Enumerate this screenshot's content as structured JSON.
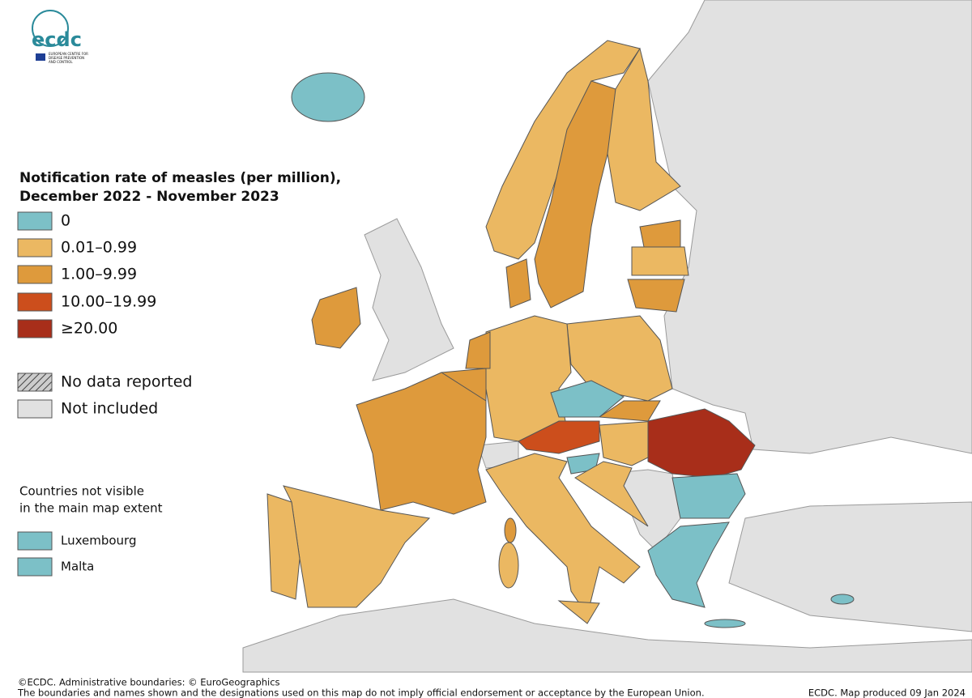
{
  "logo": {
    "text": "ecdc",
    "subtitle": [
      "EUROPEAN CENTRE FOR",
      "DISEASE PREVENTION",
      "AND CONTROL"
    ]
  },
  "legend": {
    "title": [
      "Notification rate of measles (per million),",
      "December 2022 - November 2023"
    ],
    "classes": [
      {
        "label": "0",
        "color": "#7cc0c7"
      },
      {
        "label": "0.01–0.99",
        "color": "#ebb862"
      },
      {
        "label": "1.00–9.99",
        "color": "#de9a3c"
      },
      {
        "label": "10.00–19.99",
        "color": "#cc4e1c"
      },
      {
        "label": "≥20.00",
        "color": "#a82e1a"
      }
    ],
    "no_data": "No data reported",
    "not_included": {
      "label": "Not included",
      "color": "#e1e1e1"
    }
  },
  "not_visible": {
    "title": [
      "Countries not visible",
      "in the main map extent"
    ],
    "countries": [
      {
        "name": "Luxembourg",
        "class": 0
      },
      {
        "name": "Malta",
        "class": 0
      }
    ]
  },
  "footer": {
    "left": [
      "©ECDC. Administrative boundaries: © EuroGeographics",
      "The boundaries and names shown and the designations used on this map do not imply official endorsement or acceptance by the European Union."
    ],
    "right": "ECDC. Map produced 09 Jan 2024"
  }
}
